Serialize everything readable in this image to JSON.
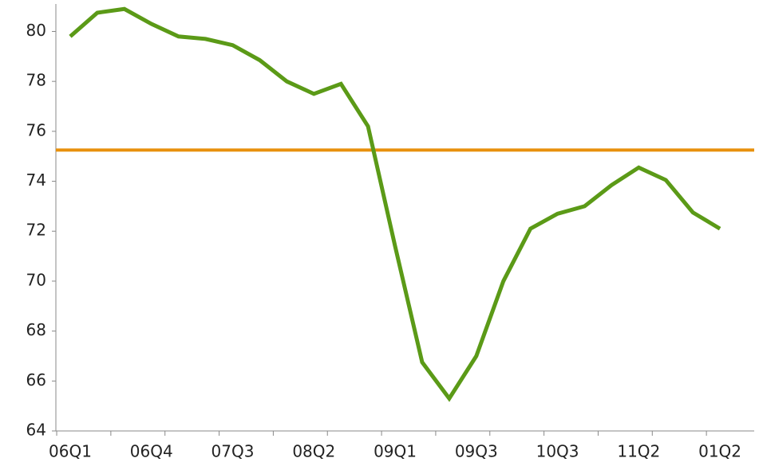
{
  "chart_data": {
    "type": "line",
    "categories": [
      "06Q1",
      null,
      null,
      "06Q4",
      null,
      null,
      "07Q3",
      null,
      null,
      "08Q2",
      null,
      null,
      "09Q1",
      null,
      null,
      "09Q3",
      null,
      null,
      "10Q3",
      null,
      null,
      "11Q2",
      null,
      null,
      "01Q2"
    ],
    "series": [
      {
        "color": "#5b9a17",
        "values": [
          79.8,
          80.75,
          80.9,
          80.3,
          79.8,
          79.7,
          79.45,
          78.85,
          78.0,
          77.5,
          77.9,
          76.2,
          71.4,
          66.75,
          65.3,
          67.0,
          70.0,
          72.1,
          72.7,
          73.0,
          73.85,
          74.55,
          74.05,
          72.75,
          72.1
        ]
      }
    ],
    "reference_line": {
      "value": 75.25,
      "color": "#e8900c"
    },
    "ylim": [
      64,
      81.1
    ],
    "yticks": [
      64,
      66,
      68,
      70,
      72,
      74,
      76,
      78,
      80
    ],
    "grid": false
  }
}
